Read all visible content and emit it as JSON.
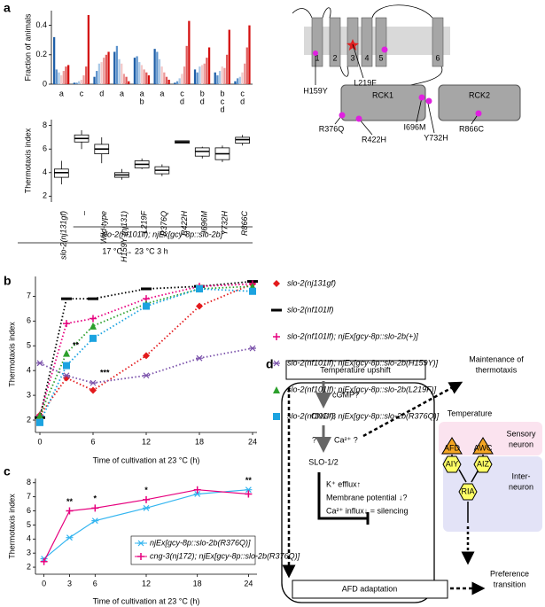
{
  "panel_labels": [
    "a",
    "b",
    "c",
    "d"
  ],
  "chart_data": [
    {
      "type": "bar",
      "y_label": "Fraction of animals",
      "ylim": [
        0,
        0.5
      ],
      "yticks": [
        0,
        0.2,
        0.4
      ],
      "series": [
        {
          "color": "#1f5fa8",
          "values": [
            0.32,
            0.01,
            0.05,
            0.22,
            0.18,
            0.24,
            0.01,
            0.1,
            0.08,
            0.02
          ]
        },
        {
          "color": "#5d93cc",
          "values": [
            0.1,
            0.01,
            0.09,
            0.26,
            0.19,
            0.22,
            0.02,
            0.08,
            0.06,
            0.04
          ]
        },
        {
          "color": "#a9c8e6",
          "values": [
            0.08,
            0.02,
            0.14,
            0.17,
            0.15,
            0.17,
            0.04,
            0.12,
            0.09,
            0.05
          ]
        },
        {
          "color": "#f3c9c9",
          "values": [
            0.06,
            0.03,
            0.15,
            0.14,
            0.13,
            0.12,
            0.07,
            0.13,
            0.12,
            0.08
          ]
        },
        {
          "color": "#ec9a9a",
          "values": [
            0.09,
            0.06,
            0.18,
            0.07,
            0.1,
            0.08,
            0.12,
            0.14,
            0.11,
            0.14
          ]
        },
        {
          "color": "#e05a5a",
          "values": [
            0.12,
            0.12,
            0.2,
            0.05,
            0.08,
            0.05,
            0.26,
            0.18,
            0.2,
            0.25
          ]
        },
        {
          "color": "#d40f0f",
          "values": [
            0.13,
            0.47,
            0.22,
            0.02,
            0.06,
            0.03,
            0.43,
            0.25,
            0.37,
            0.4
          ]
        }
      ]
    },
    {
      "type": "box",
      "y_label": "Thermotaxis index",
      "categories": [
        "slo-2(nj131gf)",
        "–",
        "Wild-type",
        "H159Y (nj131)",
        "L219F",
        "R376Q",
        "R422H",
        "I696M",
        "Y732H",
        "R866C"
      ],
      "letters": [
        [
          "a"
        ],
        [
          "c"
        ],
        [
          "d"
        ],
        [
          "a"
        ],
        [
          "a",
          "b"
        ],
        [
          "a"
        ],
        [
          "c",
          "d"
        ],
        [
          "b",
          "d"
        ],
        [
          "b",
          "c",
          "d"
        ],
        [
          "c",
          "d"
        ]
      ],
      "boxes": [
        {
          "min": 3.0,
          "q1": 3.6,
          "median": 4.0,
          "q3": 4.3,
          "max": 5.0
        },
        {
          "min": 6.0,
          "q1": 6.6,
          "median": 6.9,
          "q3": 7.2,
          "max": 7.6
        },
        {
          "min": 4.8,
          "q1": 5.6,
          "median": 6.0,
          "q3": 6.4,
          "max": 7.0
        },
        {
          "min": 3.4,
          "q1": 3.6,
          "median": 3.8,
          "q3": 4.0,
          "max": 4.3
        },
        {
          "min": 4.3,
          "q1": 4.4,
          "median": 4.7,
          "q3": 5.0,
          "max": 5.2
        },
        {
          "min": 3.7,
          "q1": 3.9,
          "median": 4.2,
          "q3": 4.5,
          "max": 4.7
        },
        {
          "min": 6.5,
          "q1": 6.5,
          "median": 6.6,
          "q3": 6.7,
          "max": 6.7
        },
        {
          "min": 5.2,
          "q1": 5.4,
          "median": 5.8,
          "q3": 6.1,
          "max": 6.2
        },
        {
          "min": 4.9,
          "q1": 5.1,
          "median": 5.6,
          "q3": 6.1,
          "max": 6.3
        },
        {
          "min": 6.3,
          "q1": 6.5,
          "median": 6.8,
          "q3": 7.0,
          "max": 7.2
        }
      ],
      "ylim": [
        1.5,
        8.5
      ],
      "yticks": [
        2,
        4,
        6,
        8
      ],
      "group_label": "slo-2(nf101lf); njEx[gcy-8p::slo-2b]",
      "condition": "17 °C → 23 °C 3 h"
    },
    {
      "type": "line",
      "line_style": "dotted",
      "x_label": "Time of cultivation at 23 °C (h)",
      "y_label": "Thermotaxis index",
      "x": [
        0,
        3,
        6,
        12,
        18,
        24
      ],
      "xlim": [
        -0.5,
        24.5
      ],
      "xticks": [
        0,
        6,
        12,
        18,
        24
      ],
      "ylim": [
        1.5,
        7.8
      ],
      "yticks": [
        2,
        3,
        4,
        5,
        6,
        7
      ],
      "annotations": [
        {
          "text": "**",
          "x": 3
        },
        {
          "text": "***",
          "x": 6
        }
      ],
      "series": [
        {
          "name": "slo-2(nj131gf)",
          "color": "#e31a1c",
          "marker": "diamond",
          "values": [
            2.2,
            3.7,
            3.2,
            4.6,
            6.6,
            7.5
          ]
        },
        {
          "name": "slo-2(nf101lf)",
          "color": "#000000",
          "marker": "dash",
          "values": [
            2.1,
            6.9,
            6.9,
            7.3,
            7.4,
            7.6
          ]
        },
        {
          "name": "slo-2(nf101lf); njEx[gcy-8p::slo-2b(+)]",
          "color": "#e6007e",
          "marker": "plus",
          "values": [
            2.2,
            5.9,
            6.1,
            6.9,
            7.4,
            7.5
          ]
        },
        {
          "name": "slo-2(nf101lf); njEx[gcy-8p::slo-2b(H159Y)]",
          "color": "#7b52ab",
          "marker": "asterisk",
          "values": [
            4.3,
            3.8,
            3.5,
            3.8,
            4.5,
            4.9
          ]
        },
        {
          "name": "slo-2(nf101lf); njEx[gcy-8p::slo-2b(L219F)]",
          "color": "#2ca02c",
          "marker": "triangle",
          "values": [
            2.2,
            4.7,
            5.8,
            6.7,
            7.3,
            7.4
          ]
        },
        {
          "name": "slo-2(nf101lf); njEx[gcy-8p::slo-2b(R376Q)]",
          "color": "#1ca3e0",
          "marker": "square",
          "values": [
            1.9,
            4.2,
            5.3,
            6.6,
            7.3,
            7.2
          ]
        }
      ]
    },
    {
      "type": "line",
      "line_style": "solid",
      "x_label": "Time of cultivation at 23 °C (h)",
      "y_label": "Thermotaxis index",
      "x": [
        0,
        3,
        6,
        12,
        18,
        24
      ],
      "xlim": [
        -1,
        25
      ],
      "xticks": [
        0,
        3,
        6,
        12,
        18,
        24
      ],
      "ylim": [
        1.5,
        8.3
      ],
      "yticks": [
        2,
        3,
        4,
        5,
        6,
        7,
        8
      ],
      "annotations": [
        {
          "text": "**",
          "x": 3
        },
        {
          "text": "*",
          "x": 6
        },
        {
          "text": "*",
          "x": 12
        },
        {
          "text": "**",
          "x": 24
        }
      ],
      "series": [
        {
          "name": "njEx[gcy-8p::slo-2b(R376Q)]",
          "color": "#33b5f0",
          "marker": "asterisk",
          "values": [
            2.6,
            4.1,
            5.3,
            6.2,
            7.2,
            7.5
          ]
        },
        {
          "name": "cng-3(nj172); njEx[gcy-8p::slo-2b(R376Q)]",
          "color": "#e6007e",
          "marker": "plus",
          "values": [
            2.4,
            6.0,
            6.2,
            6.8,
            7.5,
            7.2
          ]
        }
      ]
    }
  ],
  "diagram_a": {
    "segments": [
      "1",
      "2",
      "3",
      "4",
      "5",
      "6"
    ],
    "mutations": [
      "H159Y",
      "L219F",
      "R376Q",
      "R422H",
      "I696M",
      "Y732H",
      "R866C"
    ],
    "domains": [
      "RCK1",
      "RCK2"
    ]
  },
  "diagram_d": {
    "stimulus": "Temperature upshift",
    "cgmp": "cGMP?",
    "cng3": "CNG-3",
    "unknown": "?",
    "calcium": "Ca²⁺ ?",
    "slo": "SLO-1/2",
    "efflux": "K⁺ efflux↑",
    "membrane": "Membrane potential ↓?",
    "influx": "Ca²⁺ influx↓ = silencing",
    "adaptation": "AFD adaptation",
    "maintenance": [
      "Maintenance of",
      "thermotaxis"
    ],
    "temperature": "Temperature",
    "sensory": [
      "Sensory",
      "neuron"
    ],
    "interneuron": [
      "Inter-",
      "neuron"
    ],
    "neurons": [
      "AFD",
      "AWC",
      "AIY",
      "AIZ",
      "RIA"
    ],
    "preference": [
      "Preference",
      "transition"
    ]
  }
}
